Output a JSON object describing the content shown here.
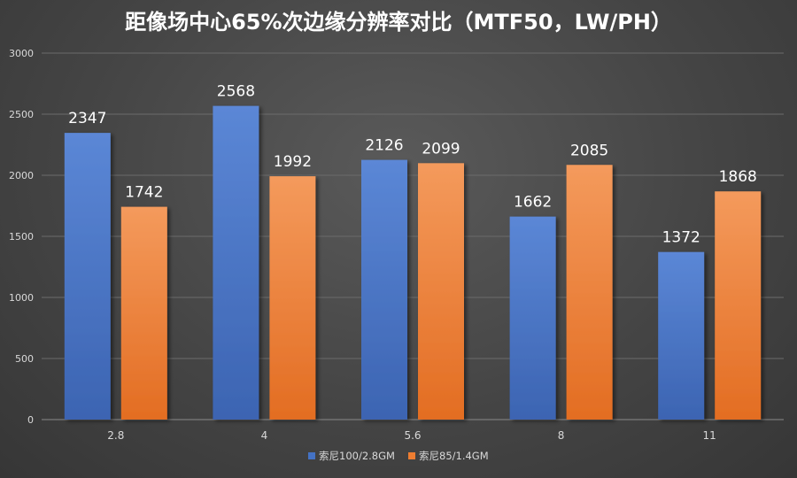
{
  "chart_data": {
    "type": "bar",
    "title": "距像场中心65%次边缘分辨率对比（MTF50，LW/PH）",
    "categories": [
      "2.8",
      "4",
      "5.6",
      "8",
      "11"
    ],
    "series": [
      {
        "name": "索尼100/2.8GM",
        "color": "#4472c4",
        "values": [
          2347,
          2568,
          2126,
          1662,
          1372
        ]
      },
      {
        "name": "索尼85/1.4GM",
        "color": "#ed7d31",
        "values": [
          1742,
          1992,
          2099,
          2085,
          1868
        ]
      }
    ],
    "yticks": [
      0,
      500,
      1000,
      1500,
      2000,
      2500,
      3000
    ],
    "ylim": [
      0,
      3000
    ],
    "grid": true,
    "legend_position": "bottom-center",
    "xlabel": "",
    "ylabel": ""
  }
}
